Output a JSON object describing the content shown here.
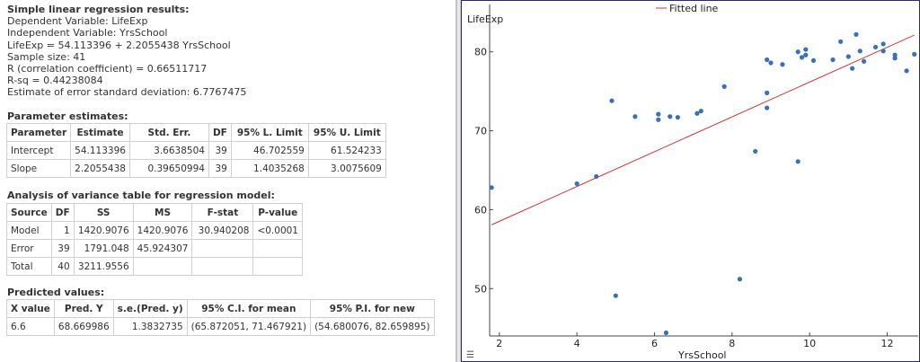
{
  "summary": {
    "title": "Simple linear regression results:",
    "lines": [
      "Dependent Variable: LifeExp",
      "Independent Variable: YrsSchool",
      "LifeExp = 54.113396 + 2.2055438 YrsSchool",
      "Sample size: 41",
      "R (correlation coefficient) = 0.66511717",
      "R-sq = 0.44238084",
      "Estimate of error standard deviation: 6.7767475"
    ]
  },
  "param": {
    "title": "Parameter estimates:",
    "headers": [
      "Parameter",
      "Estimate",
      "Std. Err.",
      "DF",
      "95% L. Limit",
      "95% U. Limit"
    ],
    "rows": [
      [
        "Intercept",
        "54.113396",
        "3.6638504",
        "39",
        "46.702559",
        "61.524233"
      ],
      [
        "Slope",
        "2.2055438",
        "0.39650994",
        "39",
        "1.4035268",
        "3.0075609"
      ]
    ]
  },
  "anova": {
    "title": "Analysis of variance table for regression model:",
    "headers": [
      "Source",
      "DF",
      "SS",
      "MS",
      "F-stat",
      "P-value"
    ],
    "rows": [
      [
        "Model",
        "1",
        "1420.9076",
        "1420.9076",
        "30.940208",
        "<0.0001"
      ],
      [
        "Error",
        "39",
        "1791.048",
        "45.924307",
        "",
        ""
      ],
      [
        "Total",
        "40",
        "3211.9556",
        "",
        "",
        ""
      ]
    ]
  },
  "pred": {
    "title": "Predicted values:",
    "headers": [
      "X value",
      "Pred. Y",
      "s.e.(Pred. y)",
      "95% C.I. for mean",
      "95% P.I. for new"
    ],
    "rows": [
      [
        "6.6",
        "68.669986",
        "1.3832735",
        "(65.872051, 71.467921)",
        "(54.680076, 82.659895)"
      ]
    ]
  },
  "chart_data": {
    "type": "scatter",
    "xlabel": "YrsSchool",
    "ylabel": "LifeExp",
    "legend": "Fitted line",
    "legend_position": "top",
    "xlim": [
      1.75,
      12.8
    ],
    "ylim": [
      44,
      86
    ],
    "xticks": [
      2,
      4,
      6,
      8,
      10,
      12
    ],
    "yticks": [
      50,
      60,
      70,
      80
    ],
    "fit": {
      "intercept": 54.113396,
      "slope": 2.2055438
    },
    "points": [
      [
        1.8,
        62.8
      ],
      [
        4.0,
        63.3
      ],
      [
        4.5,
        64.2
      ],
      [
        4.9,
        73.8
      ],
      [
        5.0,
        49.1
      ],
      [
        5.5,
        71.8
      ],
      [
        6.1,
        72.1
      ],
      [
        6.1,
        71.4
      ],
      [
        6.4,
        71.8
      ],
      [
        6.6,
        71.7
      ],
      [
        6.3,
        44.4
      ],
      [
        7.1,
        72.2
      ],
      [
        7.2,
        72.5
      ],
      [
        7.8,
        75.6
      ],
      [
        8.2,
        51.2
      ],
      [
        8.6,
        67.4
      ],
      [
        8.9,
        72.9
      ],
      [
        8.9,
        74.8
      ],
      [
        8.9,
        79.0
      ],
      [
        9.0,
        78.6
      ],
      [
        9.3,
        78.4
      ],
      [
        9.7,
        66.1
      ],
      [
        9.7,
        80.0
      ],
      [
        9.8,
        79.3
      ],
      [
        9.9,
        79.6
      ],
      [
        9.9,
        80.3
      ],
      [
        10.1,
        78.9
      ],
      [
        10.6,
        79.0
      ],
      [
        10.8,
        81.3
      ],
      [
        11.0,
        79.4
      ],
      [
        11.1,
        77.9
      ],
      [
        11.2,
        82.2
      ],
      [
        11.3,
        80.1
      ],
      [
        11.4,
        78.8
      ],
      [
        11.7,
        80.6
      ],
      [
        11.9,
        80.1
      ],
      [
        11.9,
        81.0
      ],
      [
        12.2,
        79.6
      ],
      [
        12.2,
        79.2
      ],
      [
        12.5,
        77.6
      ],
      [
        12.7,
        79.7
      ]
    ],
    "colors": {
      "point": "#3d6fb6",
      "line": "#cc3333",
      "axis": "#444444"
    }
  }
}
